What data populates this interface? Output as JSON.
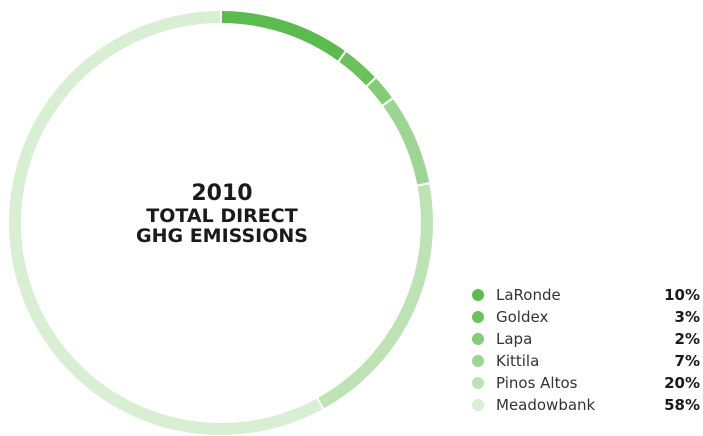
{
  "chart_data": {
    "type": "pie",
    "variant": "donut",
    "title": "2010 TOTAL DIRECT GHG EMISSIONS",
    "title_lines": [
      "2010",
      "TOTAL DIRECT",
      "GHG EMISSIONS"
    ],
    "unit": "%",
    "legend_placement": "bottom-right",
    "slices": [
      {
        "label": "LaRonde",
        "value": 10,
        "value_text": "10%",
        "color": "#5cbb4f"
      },
      {
        "label": "Goldex",
        "value": 3,
        "value_text": "3%",
        "color": "#6cc15c"
      },
      {
        "label": "Lapa",
        "value": 2,
        "value_text": "2%",
        "color": "#84cc78"
      },
      {
        "label": "Kittila",
        "value": 7,
        "value_text": "7%",
        "color": "#9ed595"
      },
      {
        "label": "Pinos Altos",
        "value": 20,
        "value_text": "20%",
        "color": "#bde3b5"
      },
      {
        "label": "Meadowbank",
        "value": 58,
        "value_text": "58%",
        "color": "#d8efd3"
      }
    ]
  }
}
